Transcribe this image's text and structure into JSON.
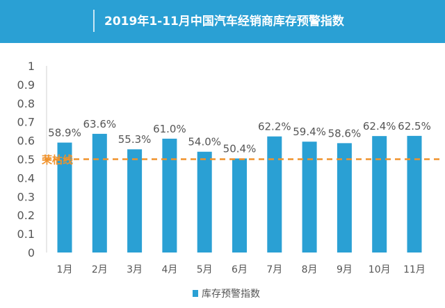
{
  "header": {
    "title": "2019年1-11月中国汽车经销商库存预警指数"
  },
  "colors": {
    "banner": "#2aa0d4",
    "bar": "#2aa0d4",
    "threshold": "#f0922b"
  },
  "chart_data": {
    "type": "bar",
    "title": "2019年1-11月中国汽车经销商库存预警指数",
    "categories": [
      "1月",
      "2月",
      "3月",
      "4月",
      "5月",
      "6月",
      "7月",
      "8月",
      "9月",
      "10月",
      "11月"
    ],
    "series": [
      {
        "name": "库存预警指数",
        "values": [
          0.589,
          0.636,
          0.553,
          0.61,
          0.54,
          0.504,
          0.622,
          0.594,
          0.586,
          0.624,
          0.625
        ],
        "labels": [
          "58.9%",
          "63.6%",
          "55.3%",
          "61.0%",
          "54.0%",
          "50.4%",
          "62.2%",
          "59.4%",
          "58.6%",
          "62.4%",
          "62.5%"
        ]
      }
    ],
    "y_ticks": [
      "0",
      "0.1",
      "0.2",
      "0.3",
      "0.4",
      "0.5",
      "0.6",
      "0.7",
      "0.8",
      "0.9",
      "1"
    ],
    "ylim": [
      0,
      1
    ],
    "threshold": {
      "value": 0.5,
      "label": "荣枯线"
    },
    "legend": {
      "label": "库存预警指数",
      "position": "bottom"
    },
    "xlabel": "",
    "ylabel": "",
    "grid": false
  }
}
